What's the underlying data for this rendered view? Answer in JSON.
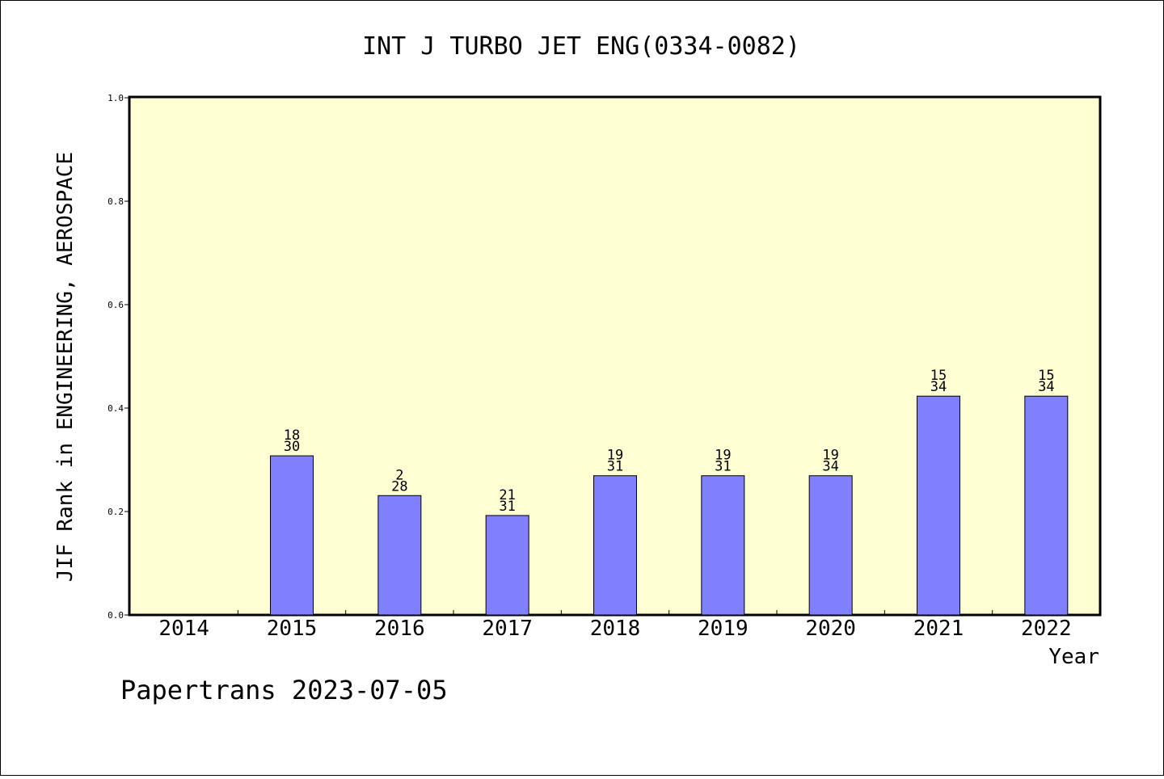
{
  "chart_data": {
    "type": "bar",
    "title": "INT J TURBO JET ENG(0334-0082)",
    "xlabel": "Year",
    "ylabel": "JIF Rank in ENGINEERING, AEROSPACE",
    "ylim": [
      0,
      1.0
    ],
    "yticks": [
      "0.0",
      "0.2",
      "0.4",
      "0.6",
      "0.8",
      "1.0"
    ],
    "categories": [
      "2014",
      "2015",
      "2016",
      "2017",
      "2018",
      "2019",
      "2020",
      "2021",
      "2022"
    ],
    "values": [
      null,
      0.3077,
      0.2308,
      0.1923,
      0.2692,
      0.2692,
      0.2692,
      0.4231,
      0.4231
    ],
    "labels": [
      null,
      {
        "rank": "18",
        "total": "30"
      },
      {
        "rank": "2",
        "total": "28"
      },
      {
        "rank": "21",
        "total": "31"
      },
      {
        "rank": "19",
        "total": "31"
      },
      {
        "rank": "19",
        "total": "31"
      },
      {
        "rank": "19",
        "total": "34"
      },
      {
        "rank": "15",
        "total": "34"
      },
      {
        "rank": "15",
        "total": "34"
      }
    ],
    "grid": false,
    "colors": {
      "plot_background": "#ffffd4",
      "bar_fill": "#8080ff",
      "bar_stroke": "#000000"
    }
  },
  "footer": "Papertrans 2023-07-05"
}
